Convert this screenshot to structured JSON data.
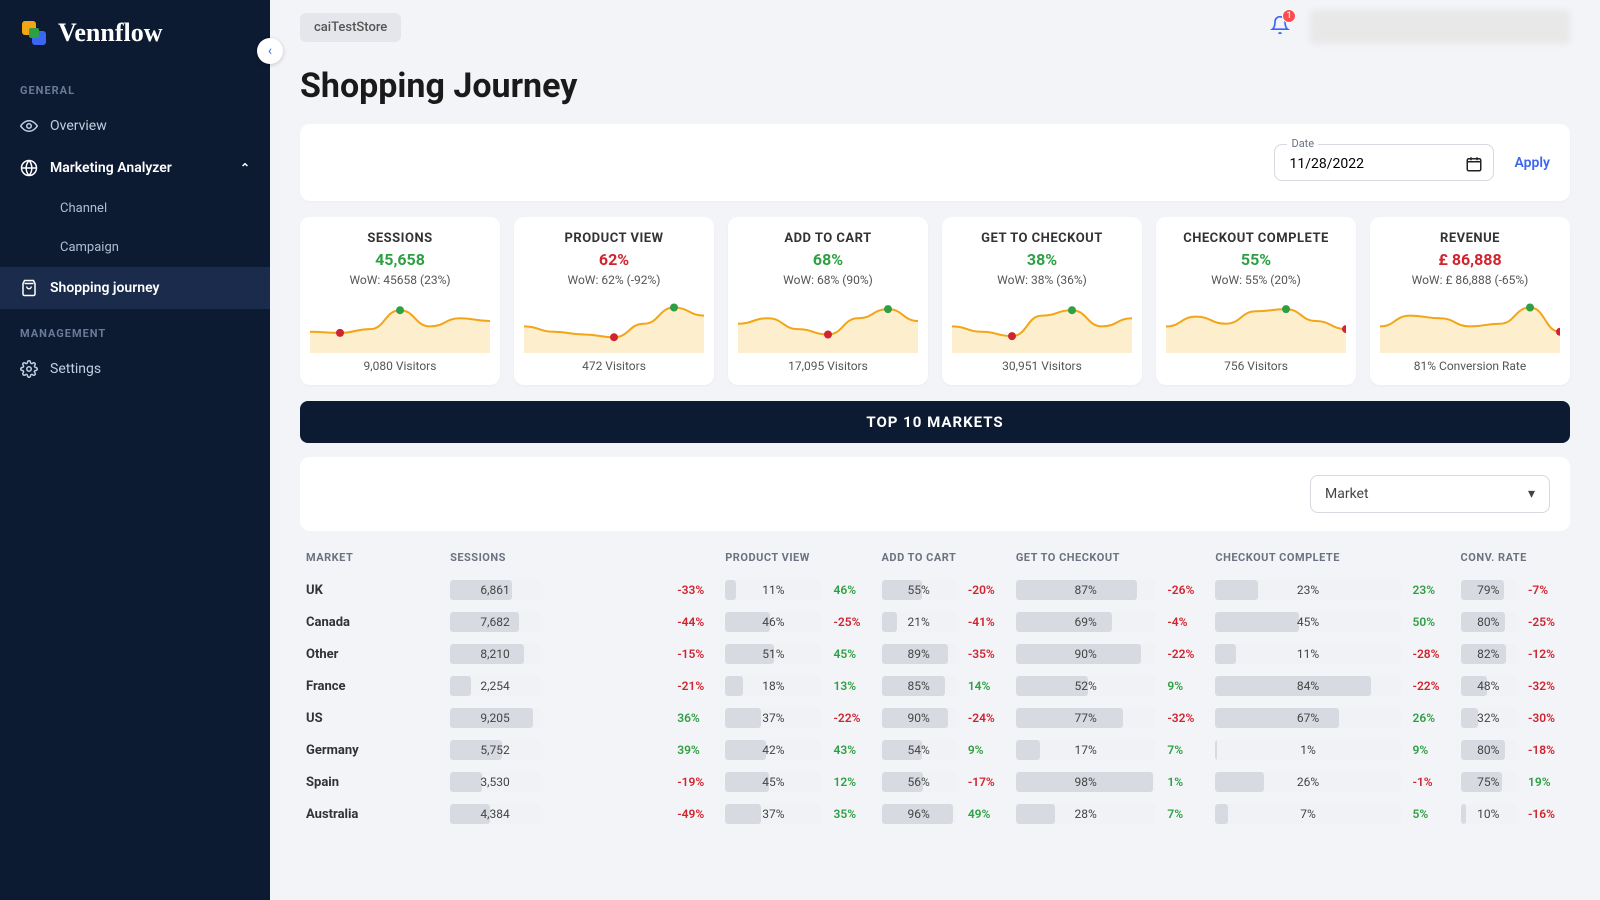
{
  "brand": "Vennflow",
  "store_chip": "caiTestStore",
  "notification_count": "1",
  "sidebar": {
    "sections": [
      {
        "label": "GENERAL"
      },
      {
        "label": "MANAGEMENT"
      }
    ],
    "items": {
      "overview": "Overview",
      "marketing": "Marketing Analyzer",
      "channel": "Channel",
      "campaign": "Campaign",
      "shopping": "Shopping journey",
      "settings": "Settings"
    }
  },
  "page_title": "Shopping Journey",
  "date": {
    "label": "Date",
    "value": "11/28/2022"
  },
  "apply_label": "Apply",
  "colors": {
    "positive": "#2ea043",
    "negative": "#d1242f",
    "spark_stroke": "#f2a516",
    "spark_fill": "#fce8b8",
    "max_dot": "#2ea043",
    "min_dot": "#d1242f"
  },
  "cards": [
    {
      "title": "SESSIONS",
      "value": "45,658",
      "value_class": "green",
      "wow": "WoW: 45658 (23%)",
      "footer": "9,080 Visitors",
      "spark": [
        30,
        28,
        35,
        70,
        40,
        55,
        50
      ]
    },
    {
      "title": "PRODUCT VIEW",
      "value": "62%",
      "value_class": "red",
      "wow": "WoW: 62% (-92%)",
      "footer": "472 Visitors",
      "spark": [
        40,
        30,
        25,
        20,
        45,
        75,
        60
      ]
    },
    {
      "title": "ADD TO CART",
      "value": "68%",
      "value_class": "green",
      "wow": "WoW: 68% (90%)",
      "footer": "17,095 Visitors",
      "spark": [
        45,
        55,
        35,
        25,
        55,
        72,
        50
      ]
    },
    {
      "title": "GET TO CHECKOUT",
      "value": "38%",
      "value_class": "green",
      "wow": "WoW: 38% (36%)",
      "footer": "30,951 Visitors",
      "spark": [
        40,
        30,
        22,
        60,
        70,
        40,
        55
      ]
    },
    {
      "title": "CHECKOUT COMPLETE",
      "value": "55%",
      "value_class": "green",
      "wow": "WoW: 55% (20%)",
      "footer": "756 Visitors",
      "spark": [
        40,
        58,
        45,
        68,
        72,
        50,
        35
      ]
    },
    {
      "title": "REVENUE",
      "value": "£ 86,888",
      "value_class": "red",
      "wow": "WoW: £ 86,888 (-65%)",
      "footer": "81% Conversion Rate",
      "spark": [
        40,
        60,
        55,
        40,
        45,
        75,
        30
      ]
    }
  ],
  "banner": "TOP 10 MARKETS",
  "market_select": "Market",
  "table": {
    "columns": [
      "MARKET",
      "SESSIONS",
      "PRODUCT VIEW",
      "ADD TO CART",
      "GET TO CHECKOUT",
      "CHECKOUT COMPLETE",
      "CONV. RATE"
    ],
    "sessions_max": 10000,
    "rows": [
      {
        "market": "UK",
        "sessions": "6,861",
        "sess_pct": 69,
        "sdelta": -33,
        "pv": 11,
        "pvd": 46,
        "atc": 55,
        "atcd": -20,
        "gtc": 87,
        "gtcd": -26,
        "cc": 23,
        "ccd": 23,
        "cr": 79,
        "crd": -7
      },
      {
        "market": "Canada",
        "sessions": "7,682",
        "sess_pct": 77,
        "sdelta": -44,
        "pv": 46,
        "pvd": -25,
        "atc": 21,
        "atcd": -41,
        "gtc": 69,
        "gtcd": -4,
        "cc": 45,
        "ccd": 50,
        "cr": 80,
        "crd": -25
      },
      {
        "market": "Other",
        "sessions": "8,210",
        "sess_pct": 82,
        "sdelta": -15,
        "pv": 51,
        "pvd": 45,
        "atc": 89,
        "atcd": -35,
        "gtc": 90,
        "gtcd": -22,
        "cc": 11,
        "ccd": -28,
        "cr": 82,
        "crd": -12
      },
      {
        "market": "France",
        "sessions": "2,254",
        "sess_pct": 23,
        "sdelta": -21,
        "pv": 18,
        "pvd": 13,
        "atc": 85,
        "atcd": 14,
        "gtc": 52,
        "gtcd": 9,
        "cc": 84,
        "ccd": -22,
        "cr": 48,
        "crd": -32
      },
      {
        "market": "US",
        "sessions": "9,205",
        "sess_pct": 92,
        "sdelta": 36,
        "pv": 37,
        "pvd": -22,
        "atc": 90,
        "atcd": -24,
        "gtc": 77,
        "gtcd": -32,
        "cc": 67,
        "ccd": 26,
        "cr": 32,
        "crd": -30
      },
      {
        "market": "Germany",
        "sessions": "5,752",
        "sess_pct": 58,
        "sdelta": 39,
        "pv": 42,
        "pvd": 43,
        "atc": 54,
        "atcd": 9,
        "gtc": 17,
        "gtcd": 7,
        "cc": 1,
        "ccd": 9,
        "cr": 80,
        "crd": -18
      },
      {
        "market": "Spain",
        "sessions": "3,530",
        "sess_pct": 35,
        "sdelta": -19,
        "pv": 45,
        "pvd": 12,
        "atc": 56,
        "atcd": -17,
        "gtc": 98,
        "gtcd": 1,
        "cc": 26,
        "ccd": -1,
        "cr": 75,
        "crd": 19
      },
      {
        "market": "Australia",
        "sessions": "4,384",
        "sess_pct": 44,
        "sdelta": -49,
        "pv": 37,
        "pvd": 35,
        "atc": 96,
        "atcd": 49,
        "gtc": 28,
        "gtcd": 7,
        "cc": 7,
        "ccd": 5,
        "cr": 10,
        "crd": -16
      }
    ]
  }
}
